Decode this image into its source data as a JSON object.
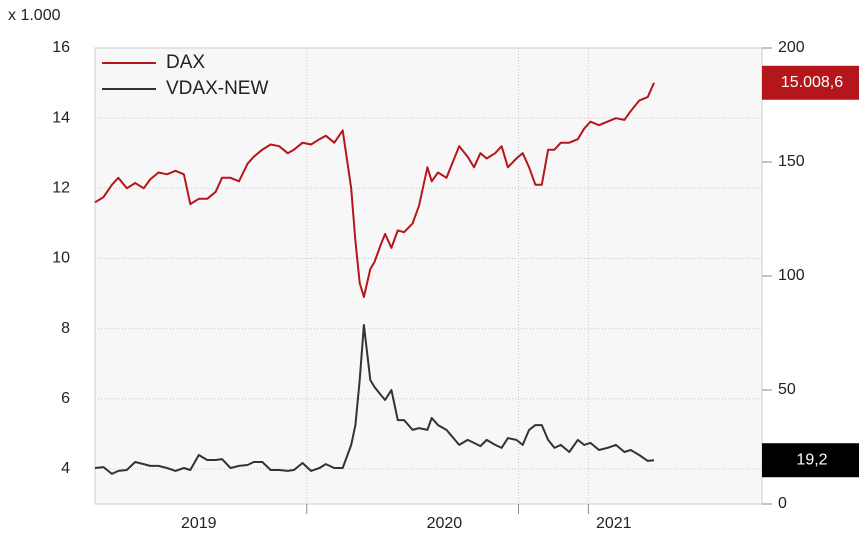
{
  "chart_data": {
    "type": "line",
    "ylabel": "x 1.000",
    "x": [
      2019.0,
      2019.04,
      2019.08,
      2019.11,
      2019.15,
      2019.19,
      2019.23,
      2019.26,
      2019.3,
      2019.34,
      2019.38,
      2019.42,
      2019.45,
      2019.49,
      2019.53,
      2019.57,
      2019.6,
      2019.64,
      2019.68,
      2019.72,
      2019.75,
      2019.79,
      2019.83,
      2019.87,
      2019.91,
      2019.94,
      2019.98,
      2020.02,
      2020.06,
      2020.09,
      2020.13,
      2020.17,
      2020.21,
      2020.23,
      2020.25,
      2020.27,
      2020.3,
      2020.32,
      2020.35,
      2020.37,
      2020.4,
      2020.43,
      2020.46,
      2020.5,
      2020.53,
      2020.57,
      2020.59,
      2020.62,
      2020.66,
      2020.68,
      2020.72,
      2020.76,
      2020.79,
      2020.82,
      2020.85,
      2020.89,
      2020.92,
      2020.95,
      2020.99,
      2021.02,
      2021.05,
      2021.08,
      2021.11,
      2021.14,
      2021.17,
      2021.2,
      2021.24,
      2021.28,
      2021.31,
      2021.34,
      2021.38,
      2021.42,
      2021.46,
      2021.5,
      2021.53,
      2021.57,
      2021.61,
      2021.64
    ],
    "series": [
      {
        "name": "DAX",
        "color": "#b5161c",
        "values": [
          11.6,
          11.75,
          12.1,
          12.3,
          12.0,
          12.15,
          12.0,
          12.25,
          12.45,
          12.4,
          12.5,
          12.4,
          11.55,
          11.7,
          11.7,
          11.9,
          12.3,
          12.3,
          12.2,
          12.7,
          12.9,
          13.1,
          13.25,
          13.2,
          13.0,
          13.1,
          13.3,
          13.25,
          13.4,
          13.5,
          13.3,
          13.65,
          12.0,
          10.5,
          9.3,
          8.9,
          9.7,
          9.9,
          10.4,
          10.7,
          10.3,
          10.8,
          10.75,
          11.0,
          11.5,
          12.6,
          12.2,
          12.45,
          12.3,
          12.6,
          13.2,
          12.9,
          12.6,
          13.0,
          12.85,
          13.0,
          13.2,
          12.6,
          12.85,
          13.0,
          12.6,
          12.1,
          12.1,
          13.1,
          13.1,
          13.3,
          13.3,
          13.4,
          13.7,
          13.9,
          13.8,
          13.9,
          14.0,
          13.95,
          14.2,
          14.5,
          14.6,
          15.0086
        ],
        "value_labels": [
          null,
          null,
          null,
          null,
          null,
          null,
          null,
          null,
          null,
          null,
          null,
          null,
          null,
          null,
          null,
          null,
          null,
          null,
          null,
          null,
          null,
          null,
          null,
          null,
          null,
          null,
          null,
          null,
          null,
          null,
          null,
          null,
          null,
          null,
          null,
          null,
          null,
          null,
          null,
          null,
          null,
          null,
          null,
          null,
          null,
          null,
          null,
          null,
          null,
          null,
          null,
          null,
          null,
          null,
          null,
          null,
          null,
          null,
          null,
          null,
          null,
          null,
          null,
          null,
          null,
          null,
          null,
          null,
          null,
          null,
          null,
          null,
          null,
          null,
          null,
          null,
          null,
          "15.008,6"
        ]
      },
      {
        "name": "VDAX-NEW",
        "color": "#333333",
        "axis": "y2",
        "values": [
          15.8,
          16.2,
          13.2,
          14.5,
          14.9,
          18.4,
          17.5,
          16.7,
          16.7,
          15.8,
          14.5,
          15.8,
          14.9,
          21.5,
          19.3,
          19.3,
          19.7,
          15.8,
          16.7,
          17.1,
          18.4,
          18.4,
          14.9,
          14.9,
          14.5,
          14.9,
          18.0,
          14.5,
          15.8,
          17.5,
          15.8,
          15.8,
          25.9,
          34.6,
          54.4,
          78.5,
          54.4,
          51.3,
          47.8,
          45.6,
          50.0,
          36.8,
          36.8,
          32.5,
          33.3,
          32.5,
          37.7,
          34.6,
          32.5,
          30.3,
          25.9,
          28.1,
          26.8,
          25.4,
          28.1,
          25.9,
          24.6,
          28.9,
          28.1,
          25.9,
          32.5,
          34.6,
          34.6,
          28.1,
          24.6,
          25.9,
          22.8,
          28.1,
          25.9,
          26.8,
          23.7,
          24.6,
          25.9,
          22.8,
          23.7,
          21.5,
          18.9,
          19.2
        ],
        "value_labels": [
          null,
          null,
          null,
          null,
          null,
          null,
          null,
          null,
          null,
          null,
          null,
          null,
          null,
          null,
          null,
          null,
          null,
          null,
          null,
          null,
          null,
          null,
          null,
          null,
          null,
          null,
          null,
          null,
          null,
          null,
          null,
          null,
          null,
          null,
          null,
          null,
          null,
          null,
          null,
          null,
          null,
          null,
          null,
          null,
          null,
          null,
          null,
          null,
          null,
          null,
          null,
          null,
          null,
          null,
          null,
          null,
          null,
          null,
          null,
          null,
          null,
          null,
          null,
          null,
          null,
          null,
          null,
          null,
          null,
          null,
          null,
          null,
          null,
          null,
          null,
          null,
          null,
          "19,2"
        ]
      }
    ],
    "xlim": [
      2019.0,
      2022.15
    ],
    "xticks": [
      {
        "value": 2019.49,
        "label": "2019"
      },
      {
        "value": 2020.65,
        "label": "2020"
      },
      {
        "value": 2021.45,
        "label": "2021"
      }
    ],
    "xgrid": [
      2020.0,
      2021.0,
      2021.33
    ],
    "ylim": [
      3,
      16
    ],
    "yticks": [
      4,
      6,
      8,
      10,
      12,
      14,
      16
    ],
    "y2lim": [
      0,
      200
    ],
    "y2ticks": [
      0,
      50,
      100,
      150,
      200
    ],
    "grid": true,
    "legend": "upper left"
  }
}
